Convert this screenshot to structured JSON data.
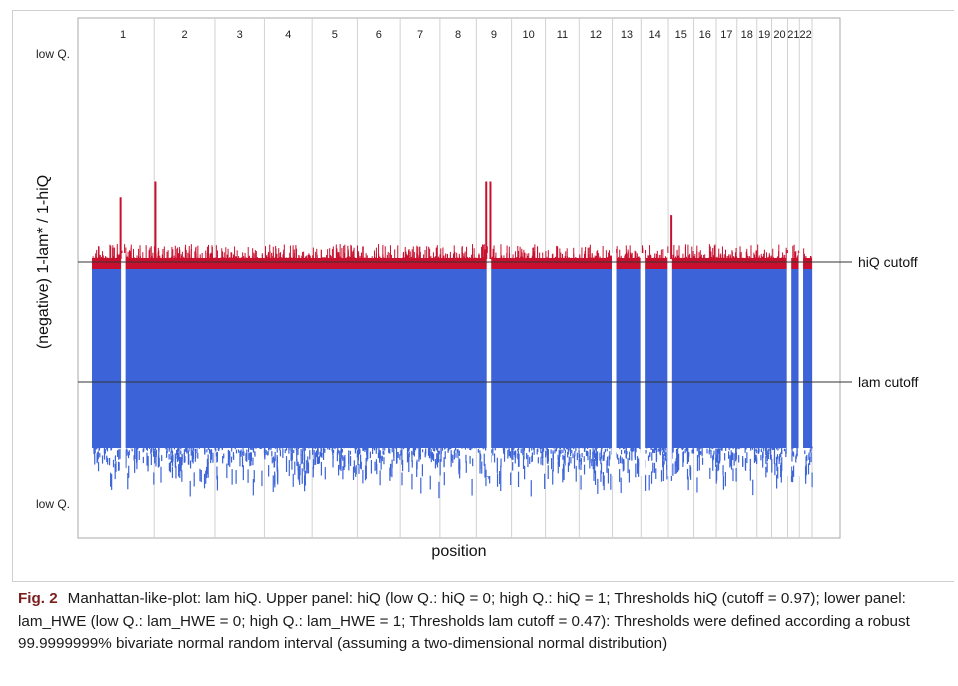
{
  "chart_data": {
    "type": "scatter",
    "title": "",
    "xlabel": "position",
    "ylabel": "(negative) 1-lam* / 1-hiQ",
    "y_top_label": "low Q.",
    "y_bottom_label": "low Q.",
    "chromosomes": [
      "1",
      "2",
      "3",
      "4",
      "5",
      "6",
      "7",
      "8",
      "9",
      "10",
      "11",
      "12",
      "13",
      "14",
      "15",
      "16",
      "17",
      "18",
      "19",
      "20",
      "21",
      "22"
    ],
    "chromosome_sizes_mb": [
      249,
      243,
      198,
      191,
      181,
      171,
      159,
      146,
      141,
      136,
      135,
      133,
      115,
      107,
      102,
      90,
      83,
      80,
      59,
      64,
      47,
      51
    ],
    "upper_panel": {
      "metric": "hiQ",
      "low_q": 0,
      "high_q": 1,
      "cutoff": 0.97,
      "cutoff_label": "hiQ cutoff",
      "color": "#c8102e"
    },
    "lower_panel": {
      "metric": "lam_HWE",
      "low_q": 0,
      "high_q": 1,
      "cutoff": 0.47,
      "cutoff_label": "lam cutoff",
      "color": "#3c64d8"
    },
    "data_gaps": [
      {
        "chromosome": "1",
        "fraction_of_chromosome": 0.5
      },
      {
        "chromosome": "9",
        "fraction_of_chromosome": 0.35
      },
      {
        "chromosome": "13",
        "fraction_of_chromosome": 0.05
      },
      {
        "chromosome": "14",
        "fraction_of_chromosome": 0.05
      },
      {
        "chromosome": "15",
        "fraction_of_chromosome": 0.05
      },
      {
        "chromosome": "21",
        "fraction_of_chromosome": 0.1
      },
      {
        "chromosome": "22",
        "fraction_of_chromosome": 0.1
      }
    ],
    "upper_peaks": [
      {
        "chromosome": "1",
        "fraction_of_chromosome": 0.46,
        "relative_height": 0.55
      },
      {
        "chromosome": "2",
        "fraction_of_chromosome": 0.02,
        "relative_height": 0.7
      },
      {
        "chromosome": "9",
        "fraction_of_chromosome": 0.28,
        "relative_height": 0.7
      },
      {
        "chromosome": "9",
        "fraction_of_chromosome": 0.4,
        "relative_height": 0.7
      },
      {
        "chromosome": "15",
        "fraction_of_chromosome": 0.12,
        "relative_height": 0.38
      }
    ],
    "grid": true,
    "legend": "none"
  },
  "caption": {
    "label": "Fig. 2",
    "text": "Manhattan-like-plot: lam hiQ. Upper panel: hiQ (low Q.: hiQ = 0; high Q.: hiQ = 1; Thresholds hiQ (cutoff = 0.97); lower panel: lam_HWE (low Q.: lam_HWE = 0; high Q.: lam_HWE = 1; Thresholds lam cutoff = 0.47): Thresholds were defined according a robust 99.9999999% bivariate normal random interval (assuming a two-dimensional normal distribution)"
  }
}
